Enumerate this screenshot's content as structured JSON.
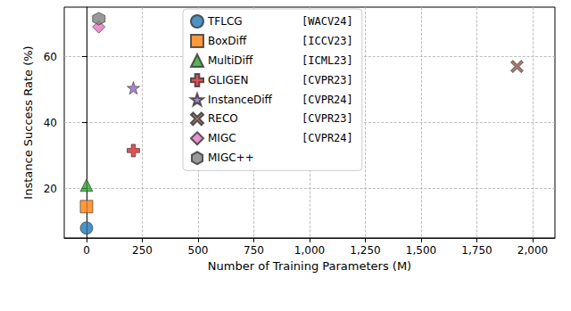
{
  "chart_data": {
    "type": "scatter",
    "x_label": "Number of Training Parameters (M)",
    "y_label": "Instance Success Rate (%)",
    "xlim": [
      -100,
      2100
    ],
    "xticks": [
      0,
      250,
      500,
      750,
      1000,
      1250,
      1500,
      1750,
      2000
    ],
    "ylim": [
      5,
      75
    ],
    "yticks": [
      20,
      40,
      60
    ],
    "grid": true,
    "legend": "upper center",
    "series": [
      {
        "name": "TFLCG",
        "venue": "[WACV24]",
        "color": "#1f77b4",
        "marker": "circle",
        "x": [
          0
        ],
        "values": [
          8
        ]
      },
      {
        "name": "BoxDiff",
        "venue": "[ICCV23]",
        "color": "#ff7f0e",
        "marker": "square",
        "x": [
          0
        ],
        "values": [
          14.5
        ]
      },
      {
        "name": "MultiDiff",
        "venue": "[ICML23]",
        "color": "#2ca02c",
        "marker": "triangle",
        "x": [
          0
        ],
        "values": [
          21
        ]
      },
      {
        "name": "GLIGEN",
        "venue": "[CVPR23]",
        "color": "#d62728",
        "marker": "plus",
        "x": [
          210
        ],
        "values": [
          31.5
        ]
      },
      {
        "name": "InstanceDiff",
        "venue": "[CVPR24]",
        "color": "#9467bd",
        "marker": "star",
        "x": [
          210
        ],
        "values": [
          50.5
        ]
      },
      {
        "name": "RECO",
        "venue": "[CVPR23]",
        "color": "#8c564b",
        "marker": "x",
        "x": [
          1930
        ],
        "values": [
          57
        ]
      },
      {
        "name": "MIGC",
        "venue": "[CVPR24]",
        "color": "#e377c2",
        "marker": "diamond",
        "x": [
          55
        ],
        "values": [
          69
        ]
      },
      {
        "name": "MIGC++",
        "color": "#7f7f7f",
        "marker": "hexagon",
        "x": [
          55
        ],
        "values": [
          71.5
        ]
      }
    ]
  }
}
